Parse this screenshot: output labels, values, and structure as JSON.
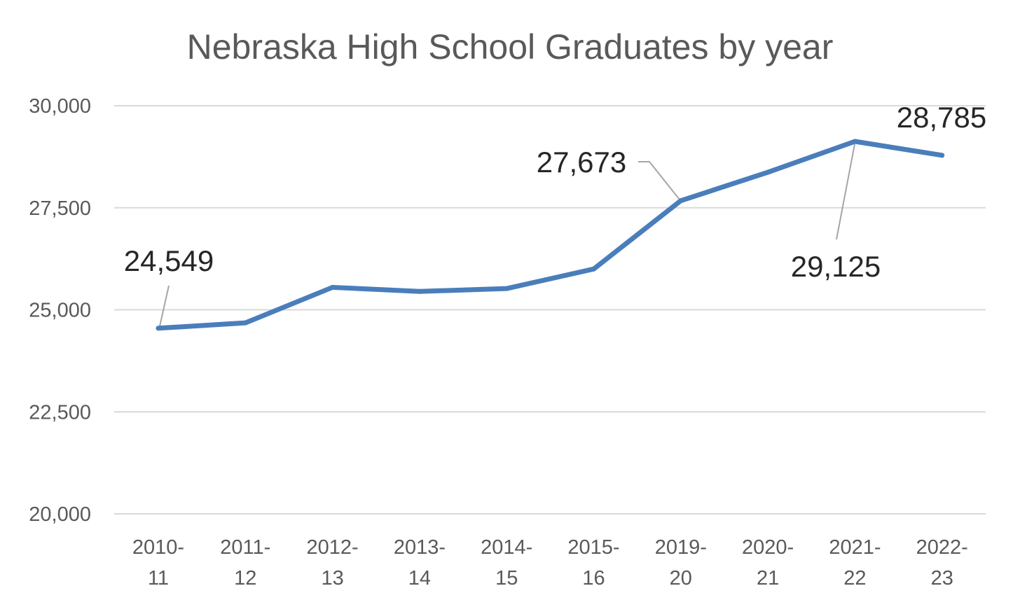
{
  "chart_data": {
    "type": "line",
    "title": "Nebraska High School Graduates by year",
    "xlabel": "",
    "ylabel": "",
    "categories": [
      "2010-11",
      "2011-12",
      "2012-13",
      "2013-14",
      "2014-15",
      "2015-16",
      "2019-20",
      "2020-21",
      "2021-22",
      "2022-23"
    ],
    "category_lines": [
      [
        "2010-",
        "11"
      ],
      [
        "2011-",
        "12"
      ],
      [
        "2012-",
        "13"
      ],
      [
        "2013-",
        "14"
      ],
      [
        "2014-",
        "15"
      ],
      [
        "2015-",
        "16"
      ],
      [
        "2019-",
        "20"
      ],
      [
        "2020-",
        "21"
      ],
      [
        "2021-",
        "22"
      ],
      [
        "2022-",
        "23"
      ]
    ],
    "series": [
      {
        "values": [
          24549,
          24680,
          25550,
          25450,
          25520,
          26000,
          27673,
          28370,
          29125,
          28785
        ],
        "color": "#4a7ebb"
      }
    ],
    "data_labels": [
      {
        "index": 0,
        "text": "24,549"
      },
      {
        "index": 6,
        "text": "27,673"
      },
      {
        "index": 8,
        "text": "29,125"
      },
      {
        "index": 9,
        "text": "28,785"
      }
    ],
    "y_ticks": [
      20000,
      22500,
      25000,
      27500,
      30000
    ],
    "y_tick_labels": [
      "20,000",
      "22,500",
      "25,000",
      "27,500",
      "30,000"
    ],
    "ylim": [
      20000,
      30000
    ],
    "grid": true,
    "legend": "none",
    "gridline_color": "#d9d9d9",
    "leader_color": "#a6a6a6"
  }
}
